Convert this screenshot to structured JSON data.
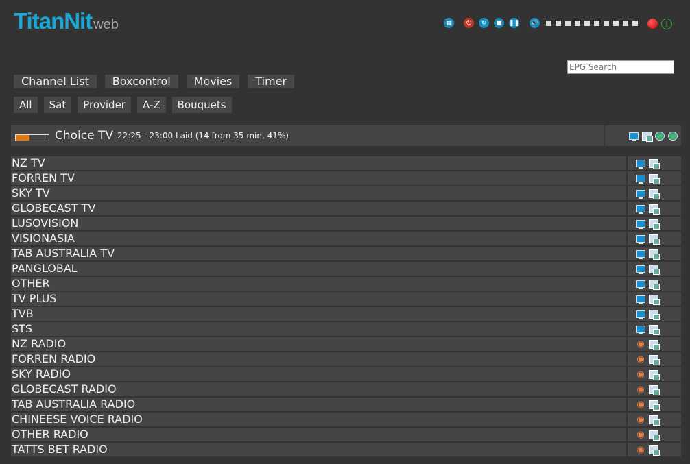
{
  "logo": {
    "main": "TitanNit",
    "sub": "web"
  },
  "controls": [
    {
      "icon": "remote-icon",
      "g": "▦"
    },
    {
      "icon": "power-icon",
      "g": "⏻",
      "red": true
    },
    {
      "icon": "restart-icon",
      "g": "↻"
    },
    {
      "icon": "stop-icon",
      "g": "■"
    },
    {
      "icon": "pause-icon",
      "g": "❚❚"
    },
    {
      "icon": "volume-icon",
      "g": "🔊"
    }
  ],
  "volume": {
    "steps": 10
  },
  "epg_search": {
    "placeholder": "EPG Search"
  },
  "menu": [
    "Channel List",
    "Boxcontrol",
    "Movies",
    "Timer"
  ],
  "submenu": [
    "All",
    "Sat",
    "Provider",
    "A-Z",
    "Bouquets"
  ],
  "current": {
    "channel": "Choice TV",
    "event": "22:25 - 23:00 Laid (14 from 35 min, 41%)",
    "progress_percent": 41
  },
  "channels": [
    {
      "name": "NZ TV",
      "type": "tv"
    },
    {
      "name": "FORREN TV",
      "type": "tv"
    },
    {
      "name": "SKY TV",
      "type": "tv"
    },
    {
      "name": "GLOBECAST TV",
      "type": "tv"
    },
    {
      "name": "LUSOVISION",
      "type": "tv"
    },
    {
      "name": "VISIONASIA",
      "type": "tv"
    },
    {
      "name": "TAB AUSTRALIA TV",
      "type": "tv"
    },
    {
      "name": "PANGLOBAL",
      "type": "tv"
    },
    {
      "name": "OTHER",
      "type": "tv"
    },
    {
      "name": "TV PLUS",
      "type": "tv"
    },
    {
      "name": "TVB",
      "type": "tv"
    },
    {
      "name": "STS",
      "type": "tv"
    },
    {
      "name": "NZ RADIO",
      "type": "radio"
    },
    {
      "name": "FORREN RADIO",
      "type": "radio"
    },
    {
      "name": "SKY RADIO",
      "type": "radio"
    },
    {
      "name": "GLOBECAST RADIO",
      "type": "radio"
    },
    {
      "name": "TAB AUSTRALIA RADIO",
      "type": "radio"
    },
    {
      "name": "CHINEESE VOICE RADIO",
      "type": "radio"
    },
    {
      "name": "OTHER RADIO",
      "type": "radio"
    },
    {
      "name": "TATTS BET RADIO",
      "type": "radio"
    }
  ],
  "colors": {
    "accent": "#1aa7d6",
    "progress": "#e07a10",
    "record": "#d00000"
  }
}
